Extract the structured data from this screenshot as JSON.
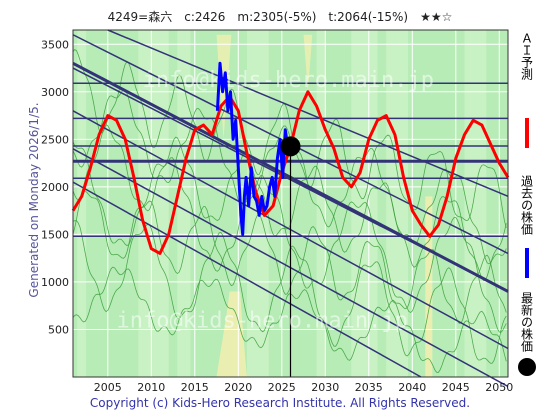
{
  "header": {
    "title": "4249=森六　c:2426　m:2305(-5%)　t:2064(-15%)　★★☆"
  },
  "side_note": "Generated on Monday 2026/1/5.",
  "footer": {
    "copyright": "Copyright (c) Kids-Hero Research Institute. All Rights Reserved."
  },
  "watermarks": [
    "info@kids-hero.main.jp",
    "info@kids-hero.main.jp"
  ],
  "legend": [
    {
      "label": "ＡＩ予測",
      "color": "#ff0000",
      "marker": "line"
    },
    {
      "label": "過去の株価",
      "color": "#0000ff",
      "marker": "line"
    },
    {
      "label": "最新の株価",
      "color": "#000000",
      "marker": "dot"
    }
  ],
  "chart_data": {
    "type": "line",
    "xlim": [
      2001,
      2051
    ],
    "ylim": [
      0,
      3650
    ],
    "x_ticks": [
      2005,
      2010,
      2015,
      2020,
      2025,
      2030,
      2035,
      2040,
      2045,
      2050
    ],
    "y_ticks": [
      500,
      1000,
      1500,
      2000,
      2500,
      3000,
      3500
    ],
    "series": [
      {
        "name": "ＡＩ予測",
        "color": "#ff0000",
        "points": [
          [
            2001,
            1750
          ],
          [
            2002,
            1900
          ],
          [
            2003,
            2200
          ],
          [
            2004,
            2550
          ],
          [
            2005,
            2750
          ],
          [
            2006,
            2700
          ],
          [
            2007,
            2500
          ],
          [
            2008,
            2100
          ],
          [
            2009,
            1650
          ],
          [
            2010,
            1350
          ],
          [
            2011,
            1300
          ],
          [
            2012,
            1500
          ],
          [
            2013,
            1900
          ],
          [
            2014,
            2300
          ],
          [
            2015,
            2600
          ],
          [
            2016,
            2650
          ],
          [
            2017,
            2550
          ],
          [
            2018,
            2850
          ],
          [
            2019,
            2950
          ],
          [
            2020,
            2800
          ],
          [
            2021,
            2350
          ],
          [
            2022,
            1950
          ],
          [
            2023,
            1700
          ],
          [
            2024,
            1800
          ],
          [
            2025,
            2150
          ],
          [
            2026,
            2426
          ],
          [
            2027,
            2800
          ],
          [
            2028,
            3000
          ],
          [
            2029,
            2850
          ],
          [
            2030,
            2600
          ],
          [
            2031,
            2400
          ],
          [
            2032,
            2100
          ],
          [
            2033,
            2000
          ],
          [
            2034,
            2150
          ],
          [
            2035,
            2500
          ],
          [
            2036,
            2700
          ],
          [
            2037,
            2750
          ],
          [
            2038,
            2550
          ],
          [
            2039,
            2100
          ],
          [
            2040,
            1750
          ],
          [
            2041,
            1600
          ],
          [
            2042,
            1480
          ],
          [
            2043,
            1600
          ],
          [
            2044,
            1900
          ],
          [
            2045,
            2300
          ],
          [
            2046,
            2550
          ],
          [
            2047,
            2700
          ],
          [
            2048,
            2650
          ],
          [
            2049,
            2450
          ],
          [
            2050,
            2250
          ],
          [
            2051,
            2100
          ]
        ]
      },
      {
        "name": "過去の株価",
        "color": "#0000ff",
        "points": [
          [
            2017.6,
            2800
          ],
          [
            2017.9,
            3300
          ],
          [
            2018.2,
            3000
          ],
          [
            2018.5,
            3200
          ],
          [
            2018.8,
            2800
          ],
          [
            2019.1,
            3000
          ],
          [
            2019.4,
            2500
          ],
          [
            2019.7,
            2700
          ],
          [
            2020.0,
            2200
          ],
          [
            2020.3,
            1700
          ],
          [
            2020.5,
            1500
          ],
          [
            2020.7,
            1900
          ],
          [
            2020.9,
            2100
          ],
          [
            2021.2,
            1800
          ],
          [
            2021.5,
            2200
          ],
          [
            2021.8,
            1900
          ],
          [
            2022.1,
            1850
          ],
          [
            2022.4,
            1700
          ],
          [
            2022.7,
            1900
          ],
          [
            2023.0,
            1750
          ],
          [
            2023.3,
            1800
          ],
          [
            2023.6,
            2000
          ],
          [
            2023.9,
            2100
          ],
          [
            2024.2,
            1900
          ],
          [
            2024.5,
            2300
          ],
          [
            2024.8,
            2500
          ],
          [
            2025.1,
            2100
          ],
          [
            2025.4,
            2600
          ],
          [
            2025.7,
            2400
          ]
        ]
      }
    ],
    "latest_price": {
      "x": 2026.0,
      "y": 2426
    },
    "reference_levels": [
      1480,
      2090,
      2270,
      2430,
      2720,
      3090
    ]
  }
}
